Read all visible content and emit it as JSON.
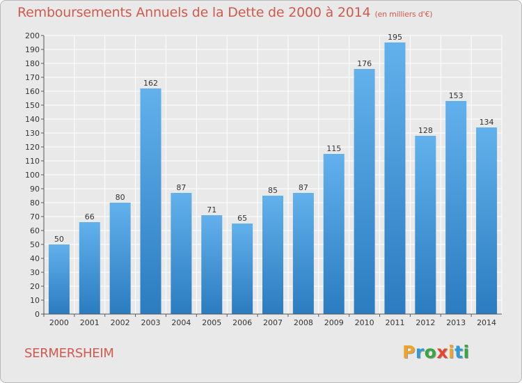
{
  "chart_data": {
    "type": "bar",
    "title": "Remboursements Annuels de la Dette de 2000 à 2014",
    "unit": "(en milliers d'€)",
    "categories": [
      "2000",
      "2001",
      "2002",
      "2003",
      "2004",
      "2005",
      "2006",
      "2007",
      "2008",
      "2009",
      "2010",
      "2011",
      "2012",
      "2013",
      "2014"
    ],
    "values": [
      50,
      66,
      80,
      162,
      87,
      71,
      65,
      85,
      87,
      115,
      176,
      195,
      128,
      153,
      134
    ],
    "ylim": [
      0,
      200
    ],
    "ytick_step": 10,
    "grid": true,
    "xlabel": "",
    "ylabel": "",
    "colors": {
      "bar_light": "#62b1ec",
      "bar_dark": "#2b7cc0",
      "grid": "#ffffff",
      "axis": "#555555",
      "title": "#d05a4e"
    }
  },
  "footer": {
    "commune": "SERMERSHEIM",
    "logo_letters": [
      {
        "char": "P",
        "color": "#f0a32a"
      },
      {
        "char": "r",
        "color": "#2f9bd6"
      },
      {
        "char": "o",
        "color": "#3aa640"
      },
      {
        "char": "x",
        "color": "#e8452c"
      },
      {
        "char": "i",
        "color": "#f0a32a"
      },
      {
        "char": "t",
        "color": "#2f9bd6"
      },
      {
        "char": "i",
        "color": "#3aa640"
      }
    ]
  }
}
